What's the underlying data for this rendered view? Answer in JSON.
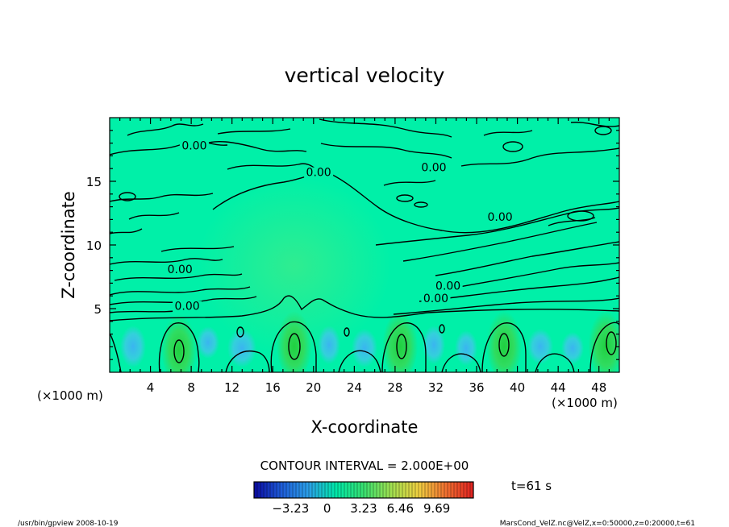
{
  "chart_data": {
    "type": "heatmap",
    "title": "vertical velocity",
    "xlabel": "X-coordinate",
    "ylabel": "Z-coordinate",
    "x_units": "(×1000 m)",
    "y_units": "(×1000 m)",
    "xlim": [
      0,
      50
    ],
    "ylim": [
      0,
      20
    ],
    "x_ticks": [
      4,
      8,
      12,
      16,
      20,
      24,
      28,
      32,
      36,
      40,
      44,
      48
    ],
    "y_ticks": [
      5,
      10,
      15
    ],
    "contour_interval_label": "CONTOUR INTERVAL = 2.000E+00",
    "contour_labels": [
      {
        "text": "0.00",
        "x": 8.3,
        "z": 17.5
      },
      {
        "text": "0.00",
        "x": 20.5,
        "z": 15.4
      },
      {
        "text": "0.00",
        "x": 31.8,
        "z": 15.8
      },
      {
        "text": "0.00",
        "x": 38.3,
        "z": 11.9
      },
      {
        "text": "0.00",
        "x": 6.9,
        "z": 7.8
      },
      {
        "text": "0.00",
        "x": 33.2,
        "z": 6.5
      },
      {
        "text": "0.00",
        "x": 32.0,
        "z": 5.5
      },
      {
        "text": "0.00",
        "x": 7.6,
        "z": 4.9
      }
    ],
    "updrafts": [
      {
        "x": 6.8,
        "z": 2.0
      },
      {
        "x": 18.1,
        "z": 2.3
      },
      {
        "x": 28.5,
        "z": 2.3
      },
      {
        "x": 38.7,
        "z": 2.3
      },
      {
        "x": 48.7,
        "z": 2.3
      }
    ],
    "colorbar": {
      "ticks": [
        "−3.23",
        "0",
        "3.23",
        "6.46",
        "9.69"
      ],
      "min": -6.46,
      "max": 12.92,
      "colors": [
        "#0a0aa0",
        "#1e5cd8",
        "#2aa0e8",
        "#00e8a8",
        "#38e070",
        "#a0e050",
        "#f0d040",
        "#f07030",
        "#e02020"
      ]
    },
    "field_color": "#00f0a8",
    "time_label": "t=61 s",
    "footer_left": "/usr/bin/gpview   2008-10-19",
    "footer_right": "MarsCond_VelZ.nc@VelZ,x=0:50000,z=0:20000,t=61"
  }
}
